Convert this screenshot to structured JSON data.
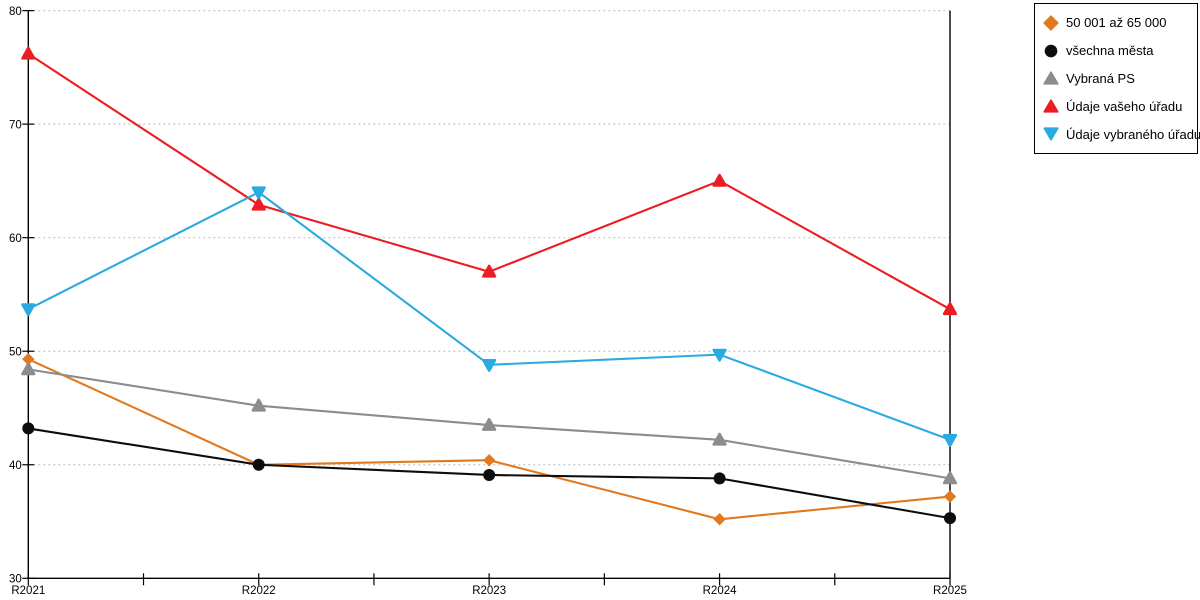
{
  "chart_data": {
    "type": "line",
    "title": "",
    "xlabel": "",
    "ylabel": "",
    "x_categories": [
      "R2021",
      "R2022",
      "R2023",
      "R2024",
      "R2025"
    ],
    "ylim": [
      30,
      80
    ],
    "yticks": [
      30,
      40,
      50,
      60,
      70,
      80
    ],
    "grid": "horizontal-dotted",
    "legend_position": "top-right-outside",
    "series": [
      {
        "name": "50 001 až 65 000",
        "color": "#e2791f",
        "marker": "diamond",
        "values": [
          49.3,
          40.0,
          40.4,
          35.2,
          37.2
        ]
      },
      {
        "name": "všechna města",
        "color": "#0d0d0d",
        "marker": "circle",
        "values": [
          43.2,
          40.0,
          39.1,
          38.8,
          35.3
        ]
      },
      {
        "name": "Vybraná PS",
        "color": "#8c8c8c",
        "marker": "triangle-up",
        "values": [
          48.4,
          45.2,
          43.5,
          42.2,
          38.8
        ]
      },
      {
        "name": "Údaje vašeho úřadu",
        "color": "#ed1c24",
        "marker": "triangle-up",
        "values": [
          76.2,
          62.9,
          57.0,
          65.0,
          53.7
        ]
      },
      {
        "name": "Údaje vybraného úřadu",
        "color": "#29abe2",
        "marker": "triangle-down",
        "values": [
          53.7,
          64.0,
          48.8,
          49.7,
          42.2
        ]
      }
    ]
  },
  "colors": {
    "background": "#ffffff",
    "grid": "#c6c6c6",
    "axis": "#000000",
    "legend_border": "#000000"
  }
}
